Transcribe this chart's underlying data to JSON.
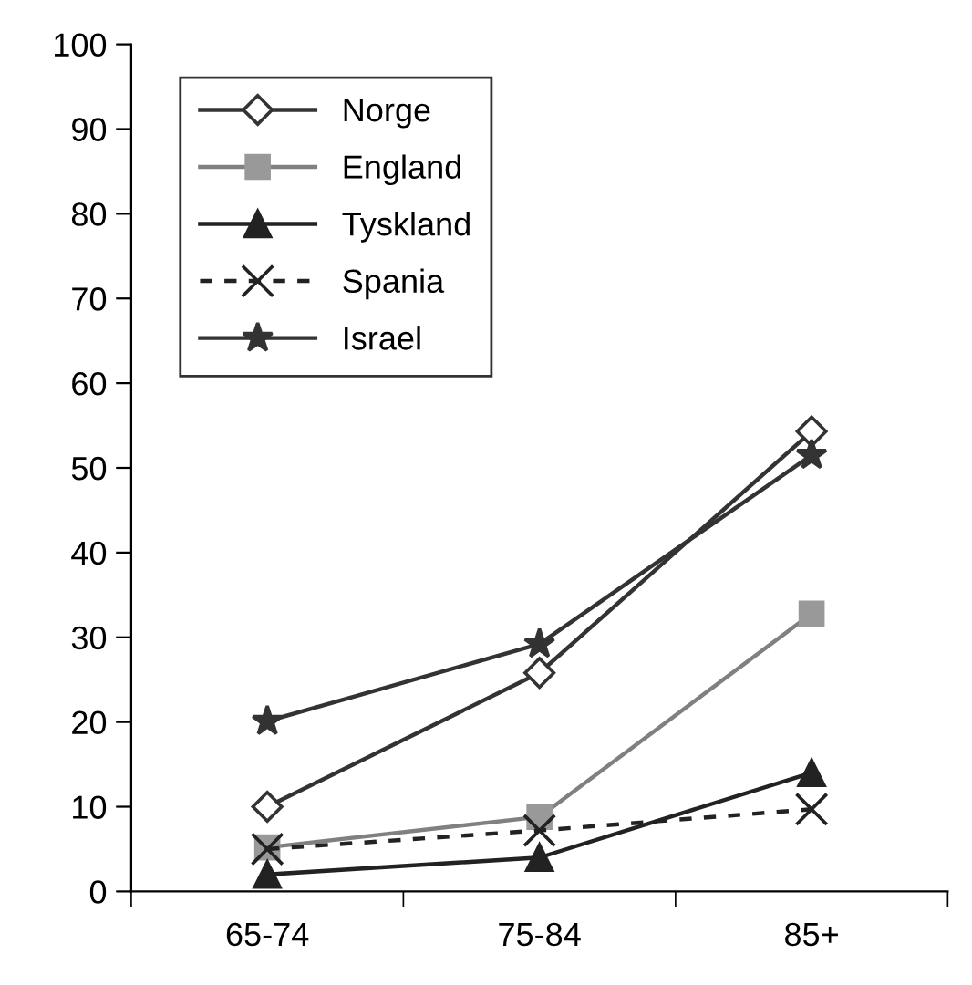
{
  "chart_data": {
    "type": "line",
    "categories": [
      "65-74",
      "75-84",
      "85+"
    ],
    "ylim": [
      0,
      100
    ],
    "yticks": [
      0,
      10,
      20,
      30,
      40,
      50,
      60,
      70,
      80,
      90,
      100
    ],
    "grid": false,
    "legend": "top left",
    "series": [
      {
        "name": "Norge",
        "color": "#333333",
        "marker": "diamond",
        "line_style": "solid",
        "values": [
          10,
          25.8,
          54.3
        ]
      },
      {
        "name": "England",
        "color": "#808080",
        "marker": "square",
        "line_style": "solid",
        "values": [
          5.2,
          8.8,
          32.8
        ]
      },
      {
        "name": "Tyskland",
        "color": "#222222",
        "marker": "triangle",
        "line_style": "solid",
        "values": [
          2,
          4,
          14
        ]
      },
      {
        "name": "Spania",
        "color": "#222222",
        "marker": "cross",
        "line_style": "dashed",
        "values": [
          5,
          7.2,
          9.7
        ]
      },
      {
        "name": "Israel",
        "color": "#333333",
        "marker": "star",
        "line_style": "solid",
        "values": [
          20.1,
          29.2,
          51.5
        ]
      }
    ]
  }
}
